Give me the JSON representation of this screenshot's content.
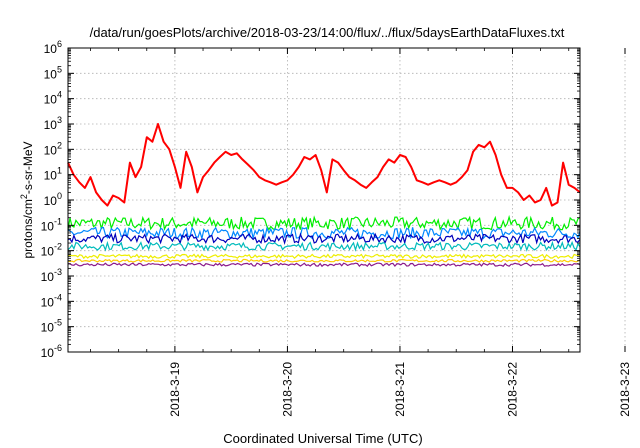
{
  "chart_data": {
    "type": "line",
    "title": "/data/run/goesPlots/archive/2018-03-23/14:00/flux/../flux/5daysEarthDataFluxes.txt",
    "xlabel": "Coordinated Universal Time (UTC)",
    "ylabel_parts": {
      "base": "protons/cm",
      "sup": "2",
      "rest": "-s-sr-MeV"
    },
    "yscale": "log",
    "ylim_exp": [
      -6,
      6
    ],
    "y_tick_base": "10",
    "y_tick_exponents": [
      "-6",
      "-5",
      "-4",
      "-3",
      "-2",
      "-1",
      "0",
      "1",
      "2",
      "3",
      "4",
      "5",
      "6"
    ],
    "xlim_days": [
      -0.95,
      3.6
    ],
    "x_ticks": [
      {
        "label": "2018-3-19",
        "day": 0
      },
      {
        "label": "2018-3-20",
        "day": 1
      },
      {
        "label": "2018-3-21",
        "day": 2
      },
      {
        "label": "2018-3-22",
        "day": 3
      },
      {
        "label": "2018-3-23",
        "day": 4
      }
    ],
    "grid": true,
    "series": [
      {
        "color": "#ff0000",
        "x": [
          -0.95,
          -0.9,
          -0.85,
          -0.8,
          -0.75,
          -0.7,
          -0.65,
          -0.6,
          -0.55,
          -0.5,
          -0.45,
          -0.4,
          -0.35,
          -0.3,
          -0.25,
          -0.2,
          -0.15,
          -0.1,
          -0.05,
          0.0,
          0.05,
          0.1,
          0.15,
          0.2,
          0.25,
          0.3,
          0.35,
          0.4,
          0.45,
          0.5,
          0.55,
          0.6,
          0.65,
          0.7,
          0.75,
          0.8,
          0.85,
          0.9,
          0.95,
          1.0,
          1.05,
          1.1,
          1.15,
          1.2,
          1.25,
          1.3,
          1.35,
          1.4,
          1.45,
          1.5,
          1.55,
          1.6,
          1.65,
          1.7,
          1.75,
          1.8,
          1.85,
          1.9,
          1.95,
          2.0,
          2.05,
          2.1,
          2.15,
          2.2,
          2.25,
          2.3,
          2.35,
          2.4,
          2.45,
          2.5,
          2.55,
          2.6,
          2.65,
          2.7,
          2.75,
          2.8,
          2.85,
          2.9,
          2.95,
          3.0,
          3.05,
          3.1,
          3.15,
          3.2,
          3.25,
          3.3,
          3.35,
          3.4,
          3.45,
          3.5,
          3.55,
          3.6
        ],
        "y": [
          30,
          10,
          5,
          3,
          8,
          2,
          1,
          0.6,
          1.5,
          1.2,
          0.8,
          30,
          8,
          20,
          300,
          200,
          1000,
          200,
          100,
          20,
          3,
          80,
          20,
          2,
          8,
          15,
          30,
          50,
          80,
          60,
          70,
          40,
          25,
          15,
          8,
          6,
          5,
          4,
          5,
          6,
          10,
          20,
          50,
          40,
          60,
          15,
          2,
          40,
          30,
          15,
          8,
          6,
          4,
          3,
          5,
          8,
          20,
          40,
          30,
          60,
          50,
          20,
          6,
          5,
          4,
          5,
          6,
          5,
          4,
          5,
          8,
          15,
          80,
          150,
          120,
          200,
          60,
          10,
          3,
          3,
          2,
          1,
          1.5,
          0.8,
          1,
          3,
          0.6,
          0.8,
          30,
          4,
          3,
          2
        ]
      },
      {
        "color": "#00ee00",
        "level": 0.12
      },
      {
        "color": "#0088ff",
        "level": 0.05
      },
      {
        "color": "#0000bb",
        "level": 0.03
      },
      {
        "color": "#00bbbb",
        "level": 0.015
      },
      {
        "color": "#eeee00",
        "level": 0.006
      },
      {
        "color": "#ffcc00",
        "level": 0.004
      },
      {
        "color": "#8b1a8b",
        "level": 0.0028
      }
    ]
  }
}
